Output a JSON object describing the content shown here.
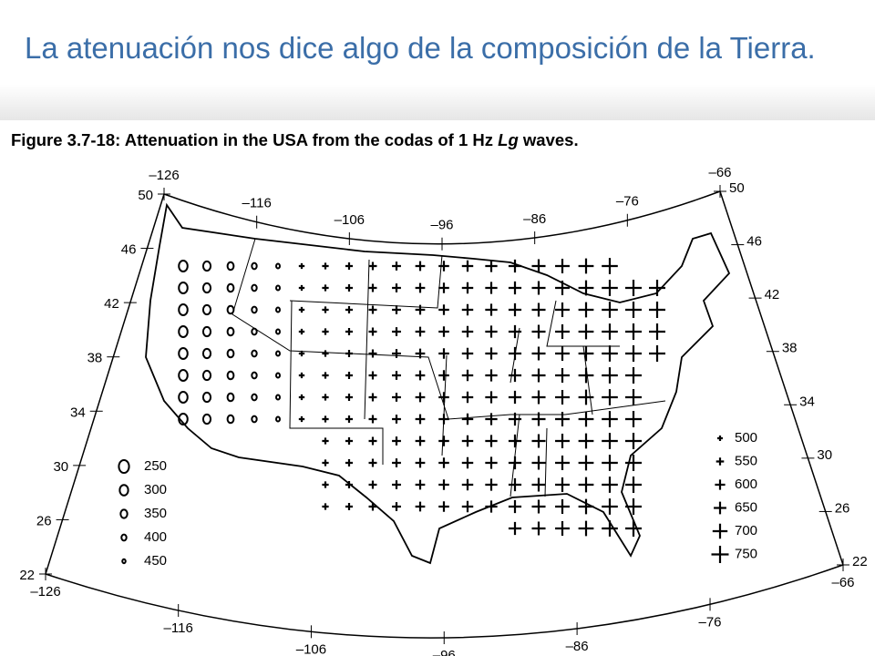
{
  "header": {
    "title": "La atenuación nos dice algo de la composición de la Tierra."
  },
  "figure": {
    "caption": {
      "prefix": "Figure 3.7-18: Attenuation in the USA from the codas of 1 Hz ",
      "italic": "Lg",
      "suffix": " waves."
    },
    "latitude_labels": [
      "50",
      "46",
      "42",
      "38",
      "34",
      "30",
      "26",
      "22"
    ],
    "longitude_labels": [
      "–126",
      "–116",
      "–106",
      "–96",
      "–86",
      "–76",
      "–66"
    ],
    "legend_low_q": [
      "250",
      "300",
      "350",
      "400",
      "450"
    ],
    "legend_high_q": [
      "500",
      "550",
      "600",
      "650",
      "700",
      "750"
    ]
  }
}
